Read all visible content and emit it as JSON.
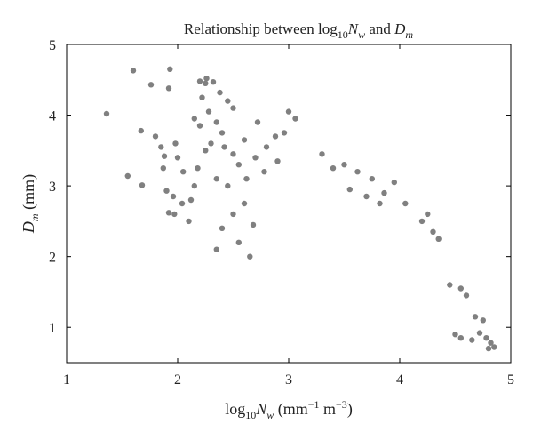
{
  "chart_data": {
    "type": "scatter",
    "title": {
      "prefix": "Relationship between log",
      "sub": "10",
      "var": "N",
      "var_sub": "w",
      "middle": " and ",
      "var2": "D",
      "var2_sub": "m"
    },
    "xlabel": {
      "prefix": "log",
      "sub": "10",
      "var": "N",
      "var_sub": "w",
      "units": " (mm",
      "units_exp1": "−1",
      "units_mid": " m",
      "units_exp2": "−3",
      "units_end": ")"
    },
    "ylabel": {
      "var": "D",
      "var_sub": "m",
      "units": " (mm)"
    },
    "xlim": [
      1,
      5
    ],
    "ylim": [
      0.5,
      5
    ],
    "xticks": [
      1,
      2,
      3,
      4,
      5
    ],
    "yticks": [
      1,
      2,
      3,
      4,
      5
    ],
    "grid": false,
    "marker_color": "#808080",
    "series": [
      {
        "points": [
          [
            1.36,
            4.02
          ],
          [
            1.6,
            4.63
          ],
          [
            1.55,
            3.14
          ],
          [
            1.68,
            3.01
          ],
          [
            1.67,
            3.78
          ],
          [
            1.76,
            4.43
          ],
          [
            1.93,
            4.65
          ],
          [
            1.92,
            4.38
          ],
          [
            1.8,
            3.7
          ],
          [
            1.85,
            3.55
          ],
          [
            1.88,
            3.42
          ],
          [
            1.87,
            3.25
          ],
          [
            1.9,
            2.93
          ],
          [
            1.92,
            2.62
          ],
          [
            1.97,
            2.6
          ],
          [
            1.96,
            2.85
          ],
          [
            1.98,
            3.6
          ],
          [
            2.0,
            3.4
          ],
          [
            2.05,
            3.2
          ],
          [
            2.04,
            2.75
          ],
          [
            2.1,
            2.5
          ],
          [
            2.12,
            2.8
          ],
          [
            2.15,
            3.0
          ],
          [
            2.15,
            3.95
          ],
          [
            2.2,
            4.48
          ],
          [
            2.25,
            4.45
          ],
          [
            2.32,
            4.47
          ],
          [
            2.38,
            4.32
          ],
          [
            2.45,
            4.2
          ],
          [
            2.5,
            4.1
          ],
          [
            2.26,
            4.52
          ],
          [
            2.22,
            4.25
          ],
          [
            2.28,
            4.05
          ],
          [
            2.35,
            3.9
          ],
          [
            2.4,
            3.75
          ],
          [
            2.3,
            3.6
          ],
          [
            2.42,
            3.55
          ],
          [
            2.5,
            3.45
          ],
          [
            2.55,
            3.3
          ],
          [
            2.2,
            3.85
          ],
          [
            2.25,
            3.5
          ],
          [
            2.18,
            3.25
          ],
          [
            2.35,
            3.1
          ],
          [
            2.45,
            3.0
          ],
          [
            2.6,
            3.65
          ],
          [
            2.62,
            3.1
          ],
          [
            2.7,
            3.4
          ],
          [
            2.72,
            3.9
          ],
          [
            2.8,
            3.55
          ],
          [
            2.9,
            3.35
          ],
          [
            2.96,
            3.75
          ],
          [
            3.0,
            4.05
          ],
          [
            3.06,
            3.95
          ],
          [
            2.88,
            3.7
          ],
          [
            2.78,
            3.2
          ],
          [
            3.55,
            2.95
          ],
          [
            3.7,
            2.85
          ],
          [
            3.86,
            2.9
          ],
          [
            4.05,
            2.75
          ],
          [
            4.2,
            2.5
          ],
          [
            4.3,
            2.35
          ],
          [
            4.35,
            2.25
          ],
          [
            4.45,
            1.6
          ],
          [
            4.55,
            1.55
          ],
          [
            4.6,
            1.45
          ],
          [
            4.68,
            1.15
          ],
          [
            4.75,
            1.1
          ],
          [
            4.72,
            0.92
          ],
          [
            4.78,
            0.85
          ],
          [
            4.82,
            0.78
          ],
          [
            4.85,
            0.72
          ],
          [
            4.8,
            0.7
          ],
          [
            4.65,
            0.82
          ],
          [
            4.55,
            0.85
          ],
          [
            4.5,
            0.9
          ],
          [
            3.5,
            3.3
          ],
          [
            3.62,
            3.2
          ],
          [
            3.75,
            3.1
          ],
          [
            3.3,
            3.45
          ],
          [
            3.4,
            3.25
          ],
          [
            3.95,
            3.05
          ],
          [
            3.82,
            2.75
          ],
          [
            4.25,
            2.6
          ],
          [
            2.55,
            2.2
          ],
          [
            2.65,
            2.0
          ],
          [
            2.6,
            2.75
          ],
          [
            2.68,
            2.45
          ],
          [
            2.5,
            2.6
          ],
          [
            2.4,
            2.4
          ],
          [
            2.35,
            2.1
          ]
        ]
      }
    ]
  }
}
